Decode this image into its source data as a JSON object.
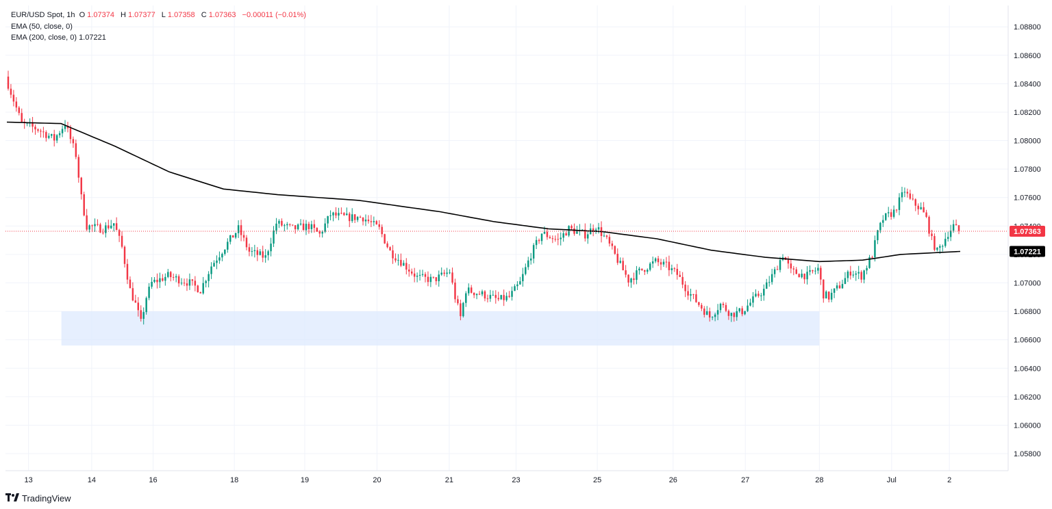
{
  "header": {
    "symbol": "EUR/USD Spot, 1h",
    "open_label": "O",
    "open": "1.07374",
    "high_label": "H",
    "high": "1.07377",
    "low_label": "L",
    "low": "1.07358",
    "close_label": "C",
    "close": "1.07363",
    "change": "−0.00011 (−0.01%)",
    "ema50_label": "EMA (50, close, 0)",
    "ema200_label": "EMA (200, close, 0)",
    "ema200_value": "1.07221"
  },
  "brand": {
    "name": "TradingView",
    "icon": "tradingview-logo-icon"
  },
  "colors": {
    "up": "#089981",
    "down": "#f23645",
    "ema": "#000000",
    "zone": "#dbe8fd",
    "grid": "#f0f3fa",
    "price_label": "#f23645",
    "ema_label": "#000000"
  },
  "chart_data": {
    "type": "candlestick",
    "title": "EUR/USD Spot, 1h",
    "x_ticks": [
      "13",
      "14",
      "16",
      "18",
      "19",
      "20",
      "21",
      "23",
      "25",
      "26",
      "27",
      "28",
      "Jul",
      "2"
    ],
    "y_ticks": [
      "1.08800",
      "1.08600",
      "1.08400",
      "1.08200",
      "1.08000",
      "1.07800",
      "1.07600",
      "1.07400",
      "1.07200",
      "1.07000",
      "1.06800",
      "1.06600",
      "1.06400",
      "1.06200",
      "1.06000",
      "1.05800"
    ],
    "ylim": [
      1.0568,
      1.0895
    ],
    "last_price": 1.07363,
    "last_price_label": "1.07363",
    "ema200_last": 1.07221,
    "ema200_last_label": "1.07221",
    "support_zone": {
      "from": 1.0656,
      "to": 1.068,
      "start": "13",
      "end": "28"
    },
    "close_path": [
      [
        0,
        1.0845
      ],
      [
        6,
        1.0812
      ],
      [
        12,
        1.0808
      ],
      [
        18,
        1.0801
      ],
      [
        22,
        1.0812
      ],
      [
        26,
        1.079
      ],
      [
        28,
        1.076
      ],
      [
        30,
        1.074
      ],
      [
        36,
        1.0738
      ],
      [
        40,
        1.0742
      ],
      [
        43,
        1.0725
      ],
      [
        46,
        1.0695
      ],
      [
        48,
        1.0685
      ],
      [
        50,
        1.0672
      ],
      [
        52,
        1.069
      ],
      [
        54,
        1.07
      ],
      [
        60,
        1.0705
      ],
      [
        68,
        1.07
      ],
      [
        72,
        1.0695
      ],
      [
        76,
        1.0712
      ],
      [
        82,
        1.0728
      ],
      [
        86,
        1.0738
      ],
      [
        90,
        1.0722
      ],
      [
        96,
        1.0718
      ],
      [
        100,
        1.0742
      ],
      [
        106,
        1.0738
      ],
      [
        112,
        1.074
      ],
      [
        116,
        1.0734
      ],
      [
        120,
        1.0748
      ],
      [
        126,
        1.0746
      ],
      [
        132,
        1.0746
      ],
      [
        138,
        1.0738
      ],
      [
        142,
        1.0722
      ],
      [
        146,
        1.0715
      ],
      [
        152,
        1.0704
      ],
      [
        158,
        1.0702
      ],
      [
        164,
        1.0708
      ],
      [
        166,
        1.069
      ],
      [
        168,
        1.0676
      ],
      [
        170,
        1.0695
      ],
      [
        176,
        1.0692
      ],
      [
        182,
        1.0688
      ],
      [
        186,
        1.069
      ],
      [
        190,
        1.07
      ],
      [
        194,
        1.072
      ],
      [
        198,
        1.0735
      ],
      [
        204,
        1.073
      ],
      [
        208,
        1.0738
      ],
      [
        214,
        1.0734
      ],
      [
        218,
        1.074
      ],
      [
        222,
        1.073
      ],
      [
        226,
        1.0716
      ],
      [
        230,
        1.0702
      ],
      [
        234,
        1.0708
      ],
      [
        240,
        1.0715
      ],
      [
        244,
        1.0712
      ],
      [
        248,
        1.0706
      ],
      [
        252,
        1.0694
      ],
      [
        256,
        1.0685
      ],
      [
        260,
        1.0676
      ],
      [
        264,
        1.0685
      ],
      [
        268,
        1.0678
      ],
      [
        272,
        1.068
      ],
      [
        276,
        1.0688
      ],
      [
        280,
        1.0695
      ],
      [
        284,
        1.0708
      ],
      [
        287,
        1.072
      ],
      [
        290,
        1.0708
      ],
      [
        296,
        1.0705
      ],
      [
        300,
        1.071
      ],
      [
        302,
        1.0692
      ],
      [
        304,
        1.069
      ],
      [
        308,
        1.0698
      ],
      [
        312,
        1.0708
      ],
      [
        316,
        1.0705
      ],
      [
        318,
        1.0712
      ],
      [
        320,
        1.072
      ],
      [
        322,
        1.0735
      ],
      [
        324,
        1.0745
      ],
      [
        328,
        1.075
      ],
      [
        332,
        1.0765
      ],
      [
        334,
        1.0758
      ],
      [
        338,
        1.0752
      ],
      [
        340,
        1.0745
      ],
      [
        342,
        1.073
      ],
      [
        344,
        1.0722
      ],
      [
        346,
        1.0728
      ],
      [
        348,
        1.0735
      ],
      [
        350,
        1.074
      ],
      [
        352,
        1.07363
      ]
    ],
    "ema200_path": [
      [
        0,
        1.0813
      ],
      [
        20,
        1.0812
      ],
      [
        40,
        1.0796
      ],
      [
        60,
        1.0778
      ],
      [
        80,
        1.0766
      ],
      [
        100,
        1.0762
      ],
      [
        130,
        1.0758
      ],
      [
        160,
        1.075
      ],
      [
        180,
        1.0743
      ],
      [
        200,
        1.0738
      ],
      [
        220,
        1.0736
      ],
      [
        240,
        1.0731
      ],
      [
        260,
        1.0723
      ],
      [
        280,
        1.0718
      ],
      [
        300,
        1.0715
      ],
      [
        316,
        1.0716
      ],
      [
        330,
        1.072
      ],
      [
        352,
        1.07221
      ]
    ],
    "bars_total": 352
  }
}
